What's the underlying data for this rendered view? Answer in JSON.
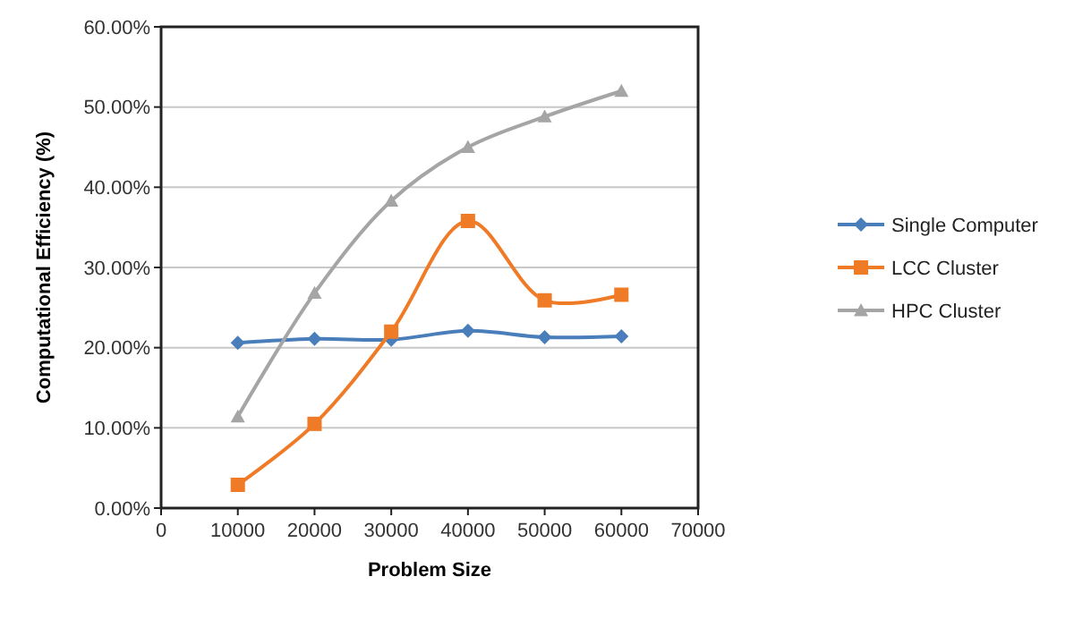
{
  "chart_data": {
    "type": "line",
    "xlabel": "Problem Size",
    "ylabel": "Computational Efficiency (%)",
    "x": [
      10000,
      20000,
      30000,
      40000,
      50000,
      60000
    ],
    "series": [
      {
        "name": "Single Computer",
        "color": "#4a7ebb",
        "marker": "diamond",
        "values": [
          20.6,
          21.1,
          21.0,
          22.1,
          21.3,
          21.4
        ]
      },
      {
        "name": "LCC Cluster",
        "color": "#f07b27",
        "marker": "square",
        "values": [
          2.9,
          10.5,
          22.0,
          35.8,
          25.9,
          26.6
        ]
      },
      {
        "name": "HPC Cluster",
        "color": "#a5a5a5",
        "marker": "triangle",
        "values": [
          11.4,
          26.8,
          38.3,
          45.0,
          48.8,
          52.0
        ]
      }
    ],
    "xlim": [
      0,
      70000
    ],
    "xticks": [
      0,
      10000,
      20000,
      30000,
      40000,
      50000,
      60000,
      70000
    ],
    "ylim": [
      0,
      60
    ],
    "yticks": [
      {
        "value": 0,
        "label": "0.00%"
      },
      {
        "value": 10,
        "label": "10.00%"
      },
      {
        "value": 20,
        "label": "20.00%"
      },
      {
        "value": 30,
        "label": "30.00%"
      },
      {
        "value": 40,
        "label": "40.00%"
      },
      {
        "value": 50,
        "label": "50.00%"
      },
      {
        "value": 60,
        "label": "60.00%"
      }
    ],
    "grid": "y",
    "legend": "right",
    "line_style": "solid"
  }
}
